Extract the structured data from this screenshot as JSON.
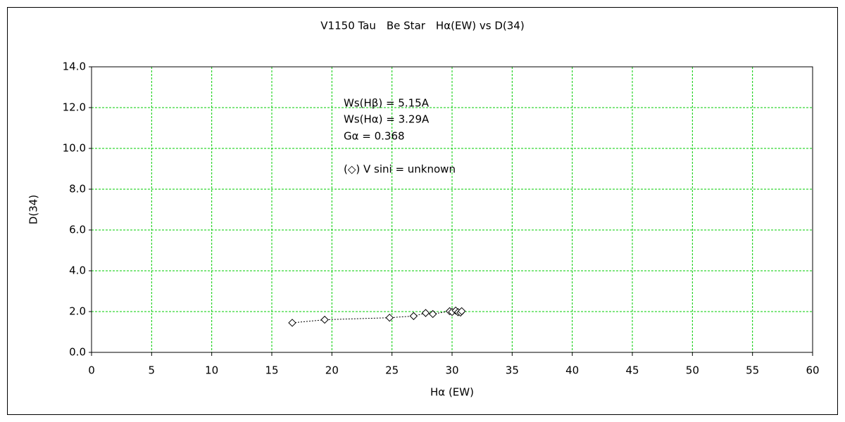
{
  "chart_data": {
    "type": "scatter",
    "title": "V1150 Tau　Be Star　Hα(EW) vs D(34)",
    "x_label": "Hα (EW)",
    "y_label": "D(34)",
    "annotations": [
      "Ws(Hβ) = 5.15A",
      "Ws(Hα) = 3.29A",
      "Gα = 0.368",
      "(◇) V sini = unknown"
    ],
    "series": [
      {
        "color": "#000000",
        "marker": "diamond",
        "line": "dashed",
        "x": [
          16.7,
          19.4,
          24.8,
          26.8,
          27.8,
          28.4,
          29.8,
          30.0,
          30.3,
          30.5,
          30.7,
          30.8
        ],
        "values": [
          1.45,
          1.6,
          1.7,
          1.78,
          1.93,
          1.88,
          2.02,
          1.98,
          2.05,
          1.97,
          1.95,
          2.02
        ]
      }
    ],
    "xlim": [
      0,
      60
    ],
    "xticks": [
      0,
      5,
      10,
      15,
      20,
      25,
      30,
      35,
      40,
      45,
      50,
      55,
      60
    ],
    "ylim": [
      0,
      14
    ],
    "yticks": [
      {
        "value": 0,
        "label": "0.0"
      },
      {
        "value": 2,
        "label": "2.0"
      },
      {
        "value": 4,
        "label": "4.0"
      },
      {
        "value": 6,
        "label": "6.0"
      },
      {
        "value": 8,
        "label": "8.0"
      },
      {
        "value": 10,
        "label": "10.0"
      },
      {
        "value": 12,
        "label": "12.0"
      },
      {
        "value": 14,
        "label": "14.0"
      }
    ],
    "grid": true,
    "grid_color": "#00cc00"
  }
}
